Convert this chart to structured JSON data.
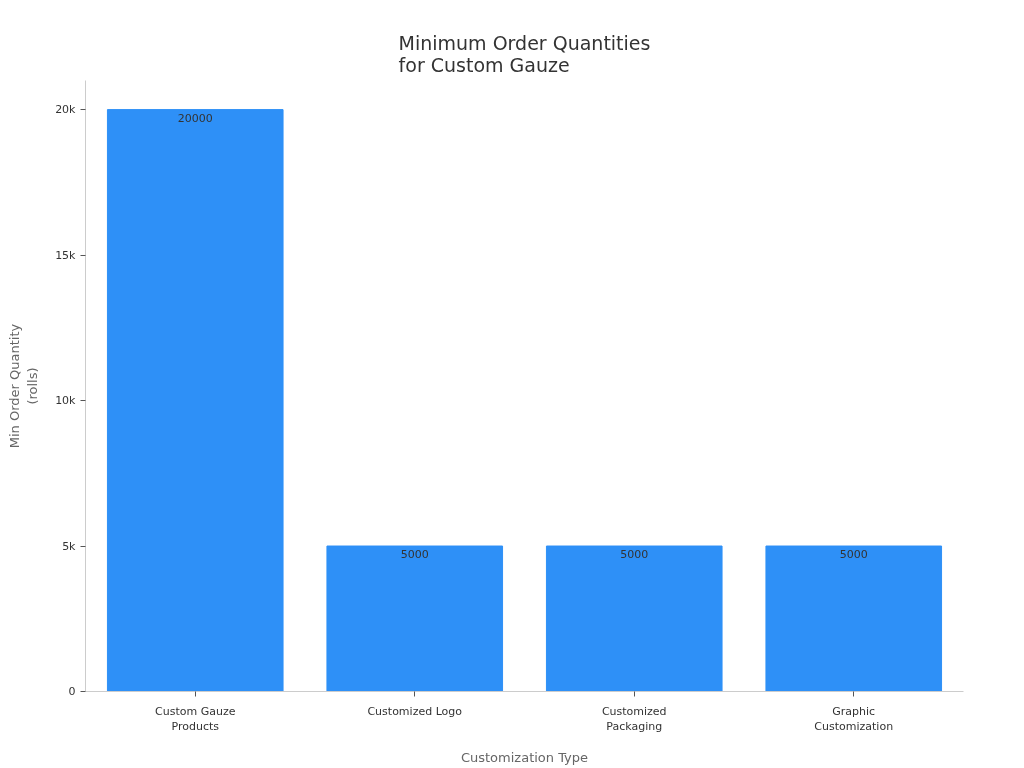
{
  "chart_data": {
    "type": "bar",
    "title": "Minimum Order Quantities for Custom Gauze",
    "xlabel": "Customization Type",
    "ylabel": "Min Order Quantity (rolls)",
    "categories": [
      "Custom Gauze Products",
      "Customized Logo",
      "Customized Packaging",
      "Graphic Customization"
    ],
    "values": [
      20000,
      5000,
      5000,
      5000
    ],
    "color": "#2e90f7",
    "data_labels": true,
    "ylim": [
      0,
      21000
    ],
    "yticks": [
      0,
      {
        "value": 5000,
        "label": "5k"
      },
      {
        "value": 10000,
        "label": "10k"
      },
      {
        "value": 15000,
        "label": "15k"
      },
      {
        "value": 20000,
        "label": "20k"
      }
    ]
  }
}
